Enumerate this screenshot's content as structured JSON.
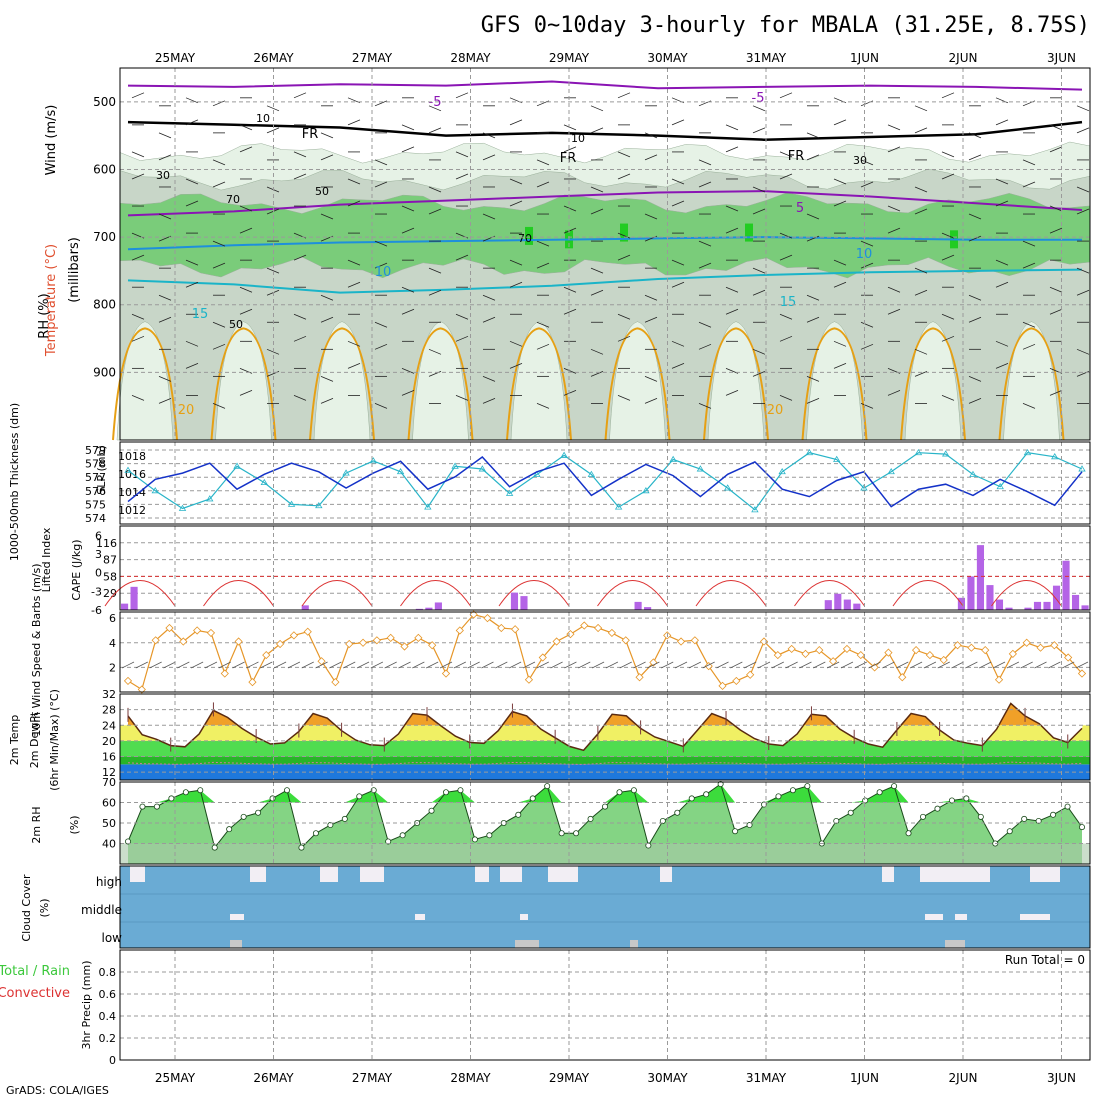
{
  "title": "GFS 0~10day 3-hourly for MBALA (31.25E, 8.75S)",
  "credit": "GrADS: COLA/IGES",
  "dates": [
    "25MAY",
    "26MAY",
    "27MAY",
    "28MAY",
    "29MAY",
    "30MAY",
    "31MAY",
    "1JUN",
    "2JUN",
    "3JUN"
  ],
  "colors": {
    "rh_light": "#e6f2e6",
    "rh_mid": "#c8d6c8",
    "rh_green": "#7acc7a",
    "rh_bright": "#22cc22",
    "temp_purple": "#8a14b4",
    "temp_blue": "#1e8fdc",
    "temp_cyan": "#1ab4c8",
    "temp_orange": "#e6a014",
    "thick_cyan": "#28b4c8",
    "slp_blue": "#1432c8",
    "cape_bar": "#b464e6",
    "li_red": "#dc3232",
    "wind_orange": "#e69628",
    "tmax_orange": "#f0a028",
    "tyellow": "#f0f064",
    "tgreen": "#50dc50",
    "tdark": "#28b428",
    "tblue": "#1e78dc",
    "rh2m_green": "#3cdc3c",
    "cloud_blue": "#6aabd4",
    "cloud_white": "#f2eef4",
    "cloud_gray": "#c8c8c8"
  },
  "chart_data": [
    {
      "panel": "upper-air",
      "type": "contour",
      "ylabels": [
        "Wind (m/s)",
        "Temperature (°C)",
        "RH (%)",
        "(millibars)"
      ],
      "yticks": [
        500,
        600,
        700,
        800,
        900
      ],
      "ylim": [
        1000,
        450
      ],
      "temperature_contour_labels": [
        "-5",
        "-5",
        "FR",
        "FR",
        "FR",
        "5",
        "10",
        "10",
        "15",
        "15",
        "20",
        "20"
      ],
      "rh_contour_labels": [
        "10",
        "10",
        "30",
        "30",
        "50",
        "50",
        "70",
        "70"
      ],
      "isotherms": [
        {
          "name": "-5",
          "values": [
            476,
            478,
            474,
            476,
            470,
            480,
            478,
            476,
            478,
            482
          ]
        },
        {
          "name": "FR",
          "values": [
            530,
            534,
            538,
            550,
            546,
            550,
            556,
            552,
            548,
            530
          ]
        },
        {
          "name": "5",
          "values": [
            668,
            662,
            652,
            646,
            640,
            634,
            632,
            640,
            650,
            660
          ]
        },
        {
          "name": "10",
          "values": [
            718,
            712,
            708,
            706,
            704,
            702,
            700,
            702,
            704,
            704
          ]
        },
        {
          "name": "15",
          "values": [
            764,
            770,
            782,
            778,
            772,
            762,
            756,
            752,
            750,
            748
          ]
        }
      ]
    },
    {
      "panel": "thickness-slp",
      "type": "line",
      "ylabels": [
        "1000-500mb Thickness (dm)",
        "SLP (mb)"
      ],
      "left_ticks": [
        574,
        575,
        576,
        577,
        578,
        579
      ],
      "right_ticks": [
        1012,
        1014,
        1016,
        1018
      ],
      "series": [
        {
          "name": "Thickness (dm)",
          "values": [
            577.5,
            576.0,
            574.7,
            575.4,
            577.8,
            576.6,
            575.0,
            574.9,
            577.3,
            578.2,
            577.4,
            574.8,
            577.8,
            577.6,
            575.8,
            577.2,
            578.6,
            577.2,
            574.8,
            576.0,
            578.3,
            577.6,
            576.2,
            574.6,
            577.4,
            578.8,
            578.3,
            576.2,
            577.4,
            578.8,
            578.7,
            577.2,
            576.3,
            578.8,
            578.5,
            577.6
          ]
        },
        {
          "name": "SLP (mb)",
          "values": [
            1012.0,
            1015.6,
            1016.6,
            1018.2,
            1014.0,
            1016.4,
            1018.2,
            1016.8,
            1014.2,
            1016.6,
            1018.5,
            1014.0,
            1016.0,
            1019.2,
            1014.4,
            1016.8,
            1018.2,
            1013.0,
            1015.6,
            1018.0,
            1016.2,
            1012.8,
            1016.4,
            1018.4,
            1014.0,
            1012.8,
            1015.4,
            1016.8,
            1011.2,
            1014.0,
            1014.8,
            1013.0,
            1015.6,
            1013.6,
            1011.4,
            1016.8
          ]
        }
      ]
    },
    {
      "panel": "lifted-index-cape",
      "type": "bar",
      "ylabels": [
        "Lifted Index",
        "CAPE (J/kg)"
      ],
      "left_ticks": [
        "-6",
        "-3",
        "0",
        "3",
        "6"
      ],
      "right_ticks": [
        "116",
        "87",
        "58",
        "29"
      ],
      "cape_values": [
        11,
        40,
        0,
        0,
        0,
        0,
        0,
        0,
        0,
        0,
        0,
        0,
        0,
        0,
        0,
        0,
        0,
        0,
        0,
        8,
        0,
        0,
        0,
        0,
        0,
        0,
        0,
        0,
        0,
        0,
        0,
        2,
        4,
        13,
        0,
        0,
        0,
        0,
        0,
        0,
        0,
        30,
        24,
        0,
        0,
        0,
        0,
        0,
        0,
        0,
        0,
        0,
        0,
        0,
        14,
        5,
        0,
        0,
        0,
        0,
        0,
        0,
        0,
        0,
        0,
        0,
        0,
        0,
        0,
        0,
        0,
        0,
        0,
        0,
        17,
        28,
        18,
        11,
        0,
        0,
        0,
        0,
        0,
        0,
        0,
        0,
        0,
        0,
        21,
        58,
        112,
        43,
        18,
        4,
        0,
        4,
        14,
        14,
        42,
        85,
        26,
        8
      ]
    },
    {
      "panel": "10m-wind",
      "type": "line",
      "ylabels": [
        "10m Wind Speed & Barbs (m/s)"
      ],
      "yticks": [
        2,
        4,
        6
      ],
      "ylim": [
        0,
        6.5
      ],
      "values": [
        0.9,
        0.2,
        4.2,
        5.2,
        4.1,
        5.0,
        4.8,
        1.5,
        4.1,
        0.8,
        3.0,
        3.9,
        4.6,
        4.9,
        2.5,
        0.8,
        3.9,
        4.0,
        4.2,
        4.4,
        3.7,
        4.4,
        3.8,
        1.5,
        5.0,
        6.3,
        6.0,
        5.2,
        5.1,
        1.0,
        2.8,
        4.1,
        4.7,
        5.4,
        5.2,
        4.8,
        4.2,
        1.2,
        2.4,
        4.6,
        4.1,
        4.2,
        2.1,
        0.5,
        0.9,
        1.4,
        4.1,
        3.0,
        3.5,
        3.1,
        3.4,
        2.5,
        3.5,
        3.0,
        2.0,
        3.2,
        1.2,
        3.4,
        3.0,
        2.6,
        3.8,
        3.6,
        3.4,
        1.0,
        3.1,
        4.0,
        3.6,
        3.8,
        2.8,
        1.5
      ]
    },
    {
      "panel": "2m-temp",
      "type": "area",
      "ylabels": [
        "2m Temp",
        "2m DewPt",
        "(6hr Min/Max) (°C)"
      ],
      "yticks": [
        12,
        16,
        20,
        24,
        28,
        32
      ],
      "ylim": [
        10,
        32
      ],
      "values": [
        26.4,
        21.6,
        20.4,
        18.8,
        18.5,
        21.8,
        27.8,
        26.0,
        23.2,
        21.0,
        19.2,
        19.5,
        22.4,
        27.0,
        25.8,
        22.6,
        20.2,
        19.0,
        18.8,
        21.8,
        27.0,
        26.6,
        23.8,
        21.2,
        19.6,
        19.4,
        22.6,
        27.5,
        26.4,
        23.0,
        20.8,
        18.6,
        17.6,
        21.8,
        26.8,
        26.4,
        23.2,
        21.0,
        19.8,
        18.6,
        22.8,
        27.0,
        25.6,
        22.8,
        20.6,
        19.2,
        18.8,
        21.8,
        26.8,
        26.4,
        23.0,
        20.8,
        19.2,
        18.4,
        22.8,
        27.0,
        26.2,
        22.8,
        20.2,
        19.4,
        18.8,
        23.0,
        29.6,
        26.4,
        24.4,
        20.8,
        19.6,
        23.2
      ]
    },
    {
      "panel": "2m-rh",
      "type": "area",
      "ylabels": [
        "2m RH",
        "(%)"
      ],
      "yticks": [
        40,
        50,
        60,
        70
      ],
      "ylim": [
        30,
        70
      ],
      "values": [
        41,
        58,
        58,
        62,
        65,
        66,
        38,
        47,
        53,
        55,
        62,
        66,
        38,
        45,
        49,
        52,
        63,
        66,
        41,
        44,
        50,
        56,
        65,
        66,
        42,
        44,
        50,
        54,
        62,
        68,
        45,
        45,
        52,
        58,
        65,
        66,
        39,
        51,
        55,
        62,
        64,
        69,
        46,
        49,
        59,
        63,
        66,
        68,
        40,
        51,
        55,
        61,
        65,
        68,
        45,
        53,
        57,
        61,
        62,
        53,
        40,
        46,
        52,
        51,
        54,
        58,
        48
      ]
    },
    {
      "panel": "cloud-cover",
      "type": "bar",
      "ylabels": [
        "Cloud Cover",
        "(%)"
      ],
      "levels": [
        "high",
        "middle",
        "low"
      ]
    },
    {
      "panel": "3hr-precip",
      "type": "bar",
      "ylabels": [
        "Total / Rain",
        "Convective",
        "3hr Precip (mm)"
      ],
      "yticks": [
        "0",
        "0.2",
        "0.4",
        "0.6",
        "0.8"
      ],
      "ylim": [
        0,
        1
      ],
      "values": [],
      "annotation": "Run Total = 0"
    }
  ]
}
